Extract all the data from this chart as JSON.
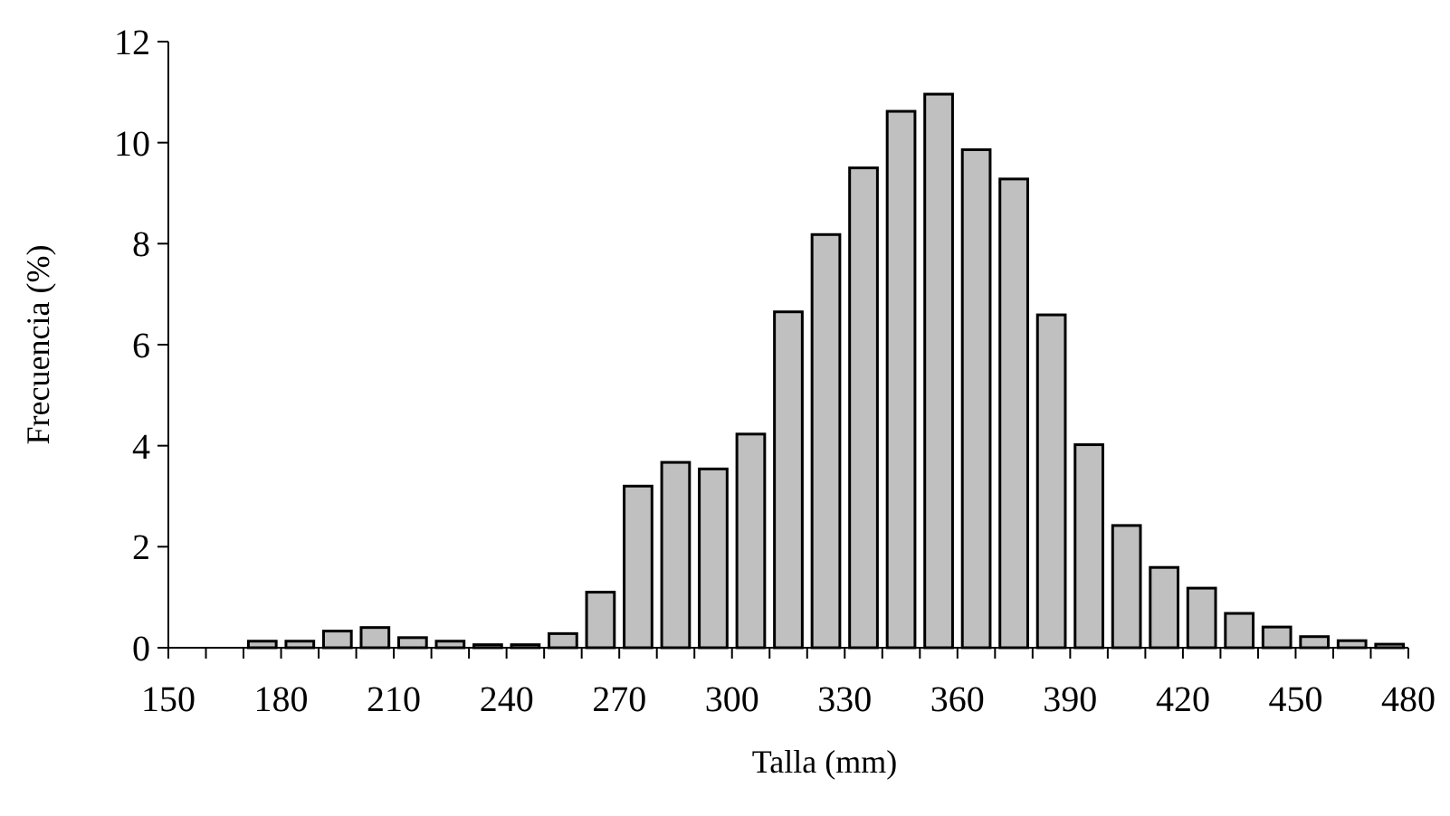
{
  "chart_data": {
    "type": "histogram",
    "xlabel": "Talla (mm)",
    "ylabel": "Frecuencia (%)",
    "color": "#c0c0c0",
    "bins": [
      170,
      180,
      190,
      200,
      210,
      220,
      230,
      240,
      250,
      260,
      270,
      280,
      290,
      300,
      310,
      320,
      330,
      340,
      350,
      360,
      370,
      380,
      390,
      400,
      410,
      420,
      430,
      440,
      450,
      460,
      470,
      480
    ],
    "values": [
      0.13,
      0.13,
      0.33,
      0.4,
      0.2,
      0.13,
      0.06,
      0.06,
      0.28,
      1.1,
      3.2,
      3.67,
      3.54,
      4.23,
      6.65,
      8.18,
      9.5,
      10.62,
      10.96,
      9.86,
      9.28,
      6.59,
      4.02,
      2.42,
      1.59,
      1.18,
      0.68,
      0.41,
      0.22,
      0.14,
      0.07
    ],
    "xlim": [
      150,
      480
    ],
    "xticks": [
      150,
      {
        "value": 160,
        "label": null
      },
      {
        "value": 170,
        "label": null
      },
      180,
      {
        "value": 190,
        "label": null
      },
      {
        "value": 200,
        "label": null
      },
      210,
      {
        "value": 220,
        "label": null
      },
      {
        "value": 230,
        "label": null
      },
      240,
      {
        "value": 250,
        "label": null
      },
      {
        "value": 260,
        "label": null
      },
      270,
      {
        "value": 280,
        "label": null
      },
      {
        "value": 290,
        "label": null
      },
      300,
      {
        "value": 310,
        "label": null
      },
      {
        "value": 320,
        "label": null
      },
      330,
      {
        "value": 340,
        "label": null
      },
      {
        "value": 350,
        "label": null
      },
      360,
      {
        "value": 370,
        "label": null
      },
      {
        "value": 380,
        "label": null
      },
      390,
      {
        "value": 400,
        "label": null
      },
      {
        "value": 410,
        "label": null
      },
      420,
      {
        "value": 430,
        "label": null
      },
      {
        "value": 440,
        "label": null
      },
      450,
      {
        "value": 460,
        "label": null
      },
      {
        "value": 470,
        "label": null
      },
      480
    ],
    "ylim": [
      0,
      12
    ],
    "yticks": [
      0,
      2,
      4,
      6,
      8,
      10,
      12
    ],
    "grid": false
  }
}
